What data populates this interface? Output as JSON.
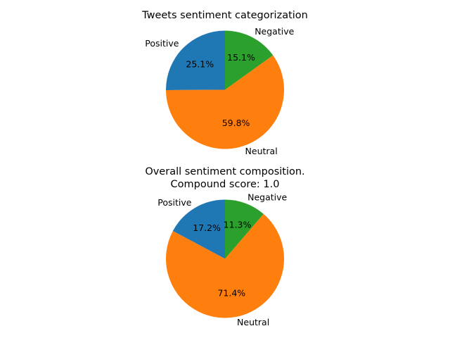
{
  "chart_data": [
    {
      "type": "pie",
      "title": [
        "Tweets sentiment categorization"
      ],
      "slices": [
        {
          "label": "Positive",
          "value": 25.1,
          "pct_text": "25.1%",
          "color": "#1f77b4"
        },
        {
          "label": "Neutral",
          "value": 59.8,
          "pct_text": "59.8%",
          "color": "#ff7f0e"
        },
        {
          "label": "Negative",
          "value": 15.1,
          "pct_text": "15.1%",
          "color": "#2ca02c"
        }
      ],
      "start_angle_deg": 90,
      "direction": "counterclockwise"
    },
    {
      "type": "pie",
      "title": [
        "Overall sentiment composition.",
        "Compound score: 1.0"
      ],
      "slices": [
        {
          "label": "Positive",
          "value": 17.2,
          "pct_text": "17.2%",
          "color": "#1f77b4"
        },
        {
          "label": "Neutral",
          "value": 71.4,
          "pct_text": "71.4%",
          "color": "#ff7f0e"
        },
        {
          "label": "Negative",
          "value": 11.3,
          "pct_text": "11.3%",
          "color": "#2ca02c"
        }
      ],
      "start_angle_deg": 90,
      "direction": "counterclockwise"
    }
  ]
}
